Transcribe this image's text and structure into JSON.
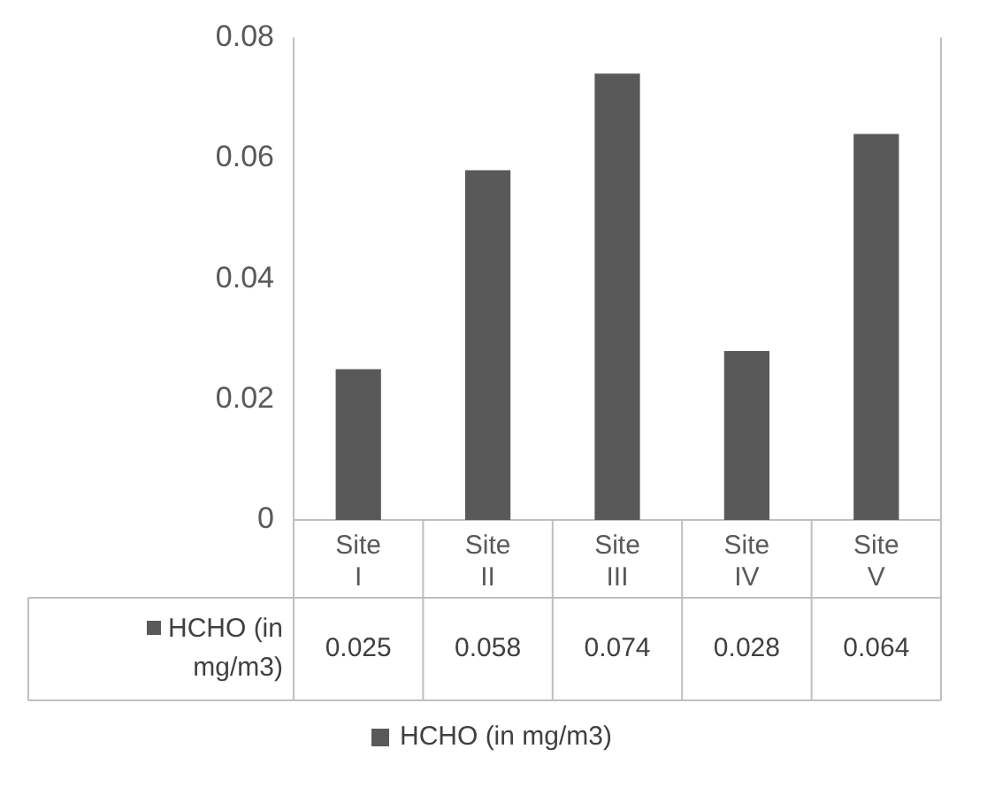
{
  "chart_data": {
    "type": "bar",
    "categories": [
      "Site I",
      "Site II",
      "Site III",
      "Site IV",
      "Site V"
    ],
    "series": [
      {
        "name": "HCHO (in mg/m3)",
        "color": "#595959",
        "values": [
          0.025,
          0.058,
          0.074,
          0.028,
          0.064
        ]
      }
    ],
    "ylim": [
      0,
      0.08
    ],
    "yticks": [
      0,
      0.02,
      0.04,
      0.06,
      0.08
    ],
    "grid": false,
    "legend": "bottom",
    "data_labels": true
  }
}
